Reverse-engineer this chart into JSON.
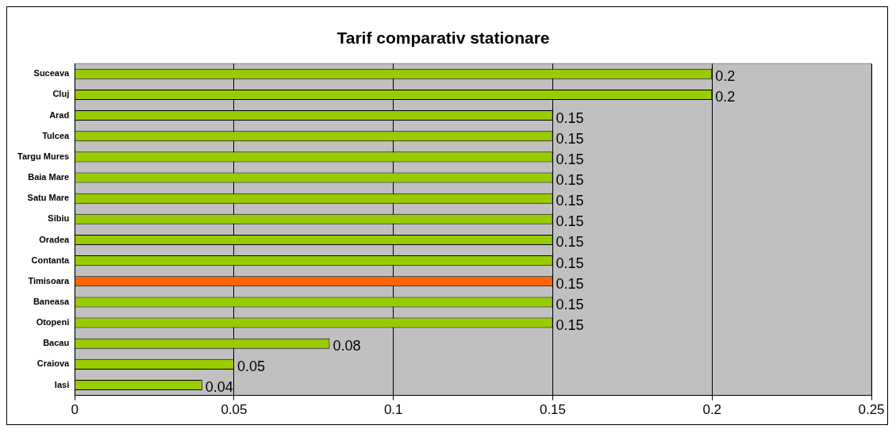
{
  "chart_data": {
    "type": "bar",
    "orientation": "horizontal",
    "title": "Tarif comparativ stationare",
    "categories": [
      "Suceava",
      "Cluj",
      "Arad",
      "Tulcea",
      "Targu Mures",
      "Baia Mare",
      "Satu Mare",
      "Sibiu",
      "Oradea",
      "Contanta",
      "Timisoara",
      "Baneasa",
      "Otopeni",
      "Bacau",
      "Craiova",
      "Iasi"
    ],
    "values": [
      0.2,
      0.2,
      0.15,
      0.15,
      0.15,
      0.15,
      0.15,
      0.15,
      0.15,
      0.15,
      0.15,
      0.15,
      0.15,
      0.08,
      0.05,
      0.04
    ],
    "colors": [
      "#99cc00",
      "#99cc00",
      "#99cc00",
      "#99cc00",
      "#99cc00",
      "#99cc00",
      "#99cc00",
      "#99cc00",
      "#99cc00",
      "#99cc00",
      "#ff6600",
      "#99cc00",
      "#99cc00",
      "#99cc00",
      "#99cc00",
      "#99cc00"
    ],
    "xlim": [
      0,
      0.25
    ],
    "xticks": [
      0,
      0.05,
      0.1,
      0.15,
      0.2,
      0.25
    ],
    "grid": "x",
    "data_labels": true,
    "legend": false
  }
}
